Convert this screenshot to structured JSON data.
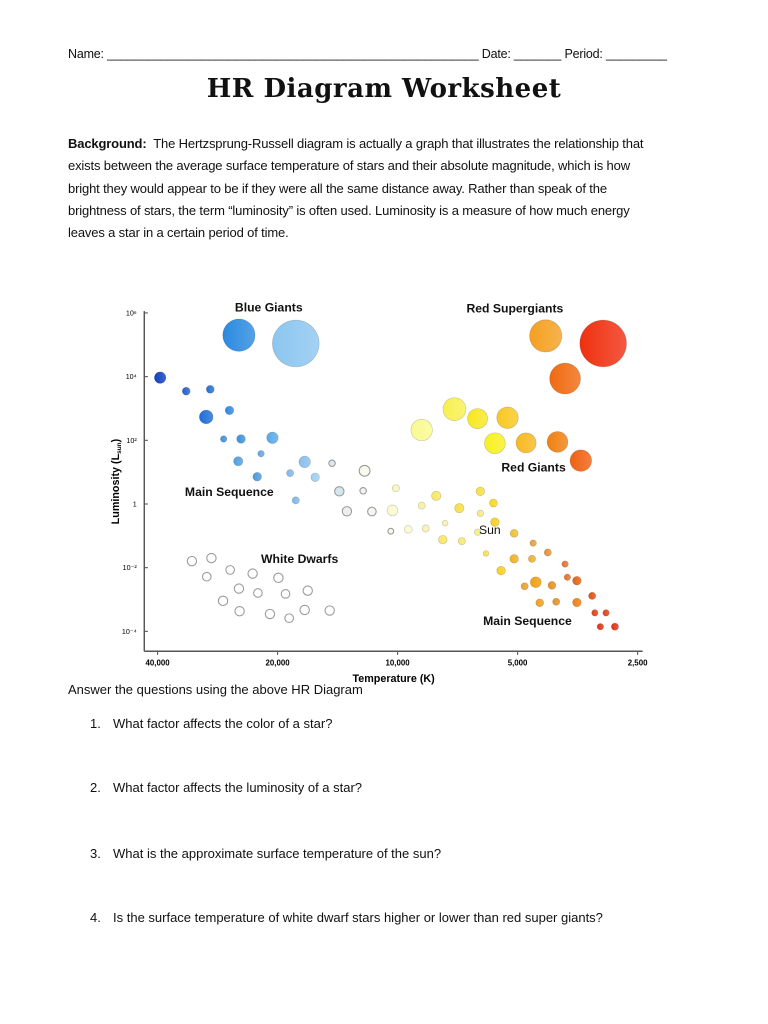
{
  "header": {
    "name_label": "Name:",
    "name_blank": "_______________________________________________________",
    "date_label": "Date:",
    "date_blank": "_______",
    "period_label": "Period:",
    "period_blank": "_________"
  },
  "title": "HR Diagram Worksheet",
  "background": {
    "label": "Background:",
    "lines": [
      "The Hertzsprung-Russell diagram is actually a graph that illustrates the relationship that",
      "exists between the average surface temperature of stars and their absolute magnitude, which is how",
      "bright they would appear to be if they were all the same distance away.  Rather than speak of the",
      "brightness of stars, the term “luminosity” is often used. Luminosity is a measure of how much energy",
      "leaves a star in a certain period of time."
    ]
  },
  "chart_data": {
    "type": "scatter",
    "xlabel": "Temperature (K)",
    "ylabel": "Luminosity (L",
    "ylabel_sub": "sun",
    "ylabel_close": ")",
    "x_scale": "log, reversed",
    "y_scale": "log",
    "xlim": [
      40000,
      2500
    ],
    "ylim": [
      0.0001,
      1000000
    ],
    "x_ticks": [
      "40,000",
      "20,000",
      "10,000",
      "5,000",
      "2,500"
    ],
    "x_tick_values": [
      40000,
      20000,
      10000,
      5000,
      2500
    ],
    "y_ticks": [
      "10⁶",
      "10⁴",
      "10²",
      "1",
      "10⁻²",
      "10⁻⁴"
    ],
    "y_tick_values": [
      1000000,
      10000,
      100,
      1,
      0.01,
      0.0001
    ],
    "grid": false,
    "annotations": {
      "blue_giants": "Blue Giants",
      "red_supergiants": "Red Supergiants",
      "red_giants": "Red Giants",
      "main_sequence_upper": "Main Sequence",
      "sun": "Sun",
      "white_dwarfs": "White Dwarfs",
      "main_sequence_lower": "Main Sequence"
    },
    "point_fields": [
      "temperature_K",
      "luminosity_Lsun",
      "relative_size",
      "color"
    ],
    "groups": [
      {
        "group": "blue-giants",
        "outline": false,
        "points": [
          [
            25000,
            200000.0,
            4.5,
            "#2a8ae0"
          ],
          [
            18000,
            110000.0,
            6.5,
            "#8cc6f0"
          ]
        ]
      },
      {
        "group": "red-supergiants",
        "outline": false,
        "points": [
          [
            4250,
            190000.0,
            4.5,
            "#f5a020"
          ],
          [
            3050,
            110000.0,
            6.5,
            "#f03010"
          ],
          [
            3800,
            8700.0,
            4.3,
            "#f06a10"
          ]
        ]
      },
      {
        "group": "red-giants",
        "outline": false,
        "points": [
          [
            8700,
            210,
            3.0,
            "#fafa90"
          ],
          [
            7200,
            950,
            3.2,
            "#f8f050"
          ],
          [
            6300,
            480,
            2.8,
            "#f8e820"
          ],
          [
            5300,
            510,
            3.0,
            "#f8c820"
          ],
          [
            5700,
            81,
            2.9,
            "#f8f020"
          ],
          [
            4760,
            83,
            2.8,
            "#f8b820"
          ],
          [
            3970,
            89,
            2.9,
            "#f08010"
          ],
          [
            3470,
            23,
            3.0,
            "#f06010"
          ]
        ]
      },
      {
        "group": "main-sequence",
        "outline": false,
        "points": [
          [
            39400,
            9300.0,
            1.6,
            "#1040c0"
          ],
          [
            33900,
            3500.0,
            1.1,
            "#2060d0"
          ],
          [
            29500,
            4000.0,
            1.1,
            "#2070d8"
          ],
          [
            30200,
            540,
            1.9,
            "#1e6ed8"
          ],
          [
            26400,
            870,
            1.2,
            "#3088e0"
          ],
          [
            27300,
            110,
            0.9,
            "#3a90e0"
          ],
          [
            24700,
            110,
            1.2,
            "#3a90e0"
          ],
          [
            20600,
            120,
            1.6,
            "#5aa8e8"
          ],
          [
            22000,
            38,
            0.9,
            "#60a8e8"
          ],
          [
            25100,
            22,
            1.3,
            "#50a0e0"
          ],
          [
            22500,
            7.2,
            1.2,
            "#4a9ae0"
          ],
          [
            17100,
            21,
            1.6,
            "#88c0ec"
          ],
          [
            18600,
            9.3,
            1.0,
            "#80b8e8"
          ],
          [
            16100,
            6.9,
            1.2,
            "#a0cef0"
          ],
          [
            18000,
            1.3,
            1.0,
            "#80b8e8"
          ],
          [
            10300,
            0.63,
            1.5,
            "#fafad0"
          ],
          [
            10100,
            3.1,
            1.0,
            "#f8f4c0"
          ],
          [
            9400,
            0.16,
            1.1,
            "#fafad0"
          ],
          [
            8500,
            0.17,
            1.0,
            "#f8f0b0"
          ],
          [
            8700,
            0.89,
            1.0,
            "#f8f0a0"
          ],
          [
            8000,
            1.8,
            1.3,
            "#f8e860"
          ],
          [
            7600,
            0.25,
            0.8,
            "#f8f0b0"
          ],
          [
            7000,
            0.74,
            1.3,
            "#f8e040"
          ],
          [
            7700,
            0.076,
            1.2,
            "#f8e860"
          ],
          [
            6900,
            0.068,
            1.0,
            "#f8e870"
          ],
          [
            6200,
            2.5,
            1.2,
            "#f8e040"
          ],
          [
            6200,
            0.51,
            0.9,
            "#f8e880"
          ],
          [
            5750,
            1.07,
            1.1,
            "#f8d820"
          ],
          [
            5700,
            0.27,
            1.2,
            "#f8d020"
          ],
          [
            6300,
            0.13,
            0.9,
            "#f8f080"
          ],
          [
            5100,
            0.12,
            1.1,
            "#f0c030"
          ],
          [
            6000,
            0.028,
            0.8,
            "#f8e050"
          ],
          [
            5500,
            0.0081,
            1.2,
            "#f8d020"
          ],
          [
            5100,
            0.019,
            1.2,
            "#f0b020"
          ],
          [
            4600,
            0.019,
            1.0,
            "#f0b030"
          ],
          [
            4570,
            0.059,
            0.9,
            "#e8a040"
          ],
          [
            4200,
            0.03,
            1.0,
            "#e89030"
          ],
          [
            4800,
            0.0026,
            1.0,
            "#e8a030"
          ],
          [
            4500,
            0.0035,
            1.5,
            "#f0a010"
          ],
          [
            4100,
            0.0028,
            1.1,
            "#e89020"
          ],
          [
            4400,
            0.00079,
            1.1,
            "#f0a020"
          ],
          [
            4000,
            0.00085,
            1.0,
            "#e89020"
          ],
          [
            3800,
            0.013,
            0.9,
            "#e87030"
          ],
          [
            3750,
            0.005,
            0.9,
            "#e87020"
          ],
          [
            3550,
            0.0039,
            1.2,
            "#e86010"
          ],
          [
            3550,
            0.00081,
            1.2,
            "#f08010"
          ],
          [
            3250,
            0.0013,
            1.0,
            "#e05010"
          ],
          [
            3200,
            0.00038,
            0.9,
            "#e04010"
          ],
          [
            3000,
            0.00038,
            0.9,
            "#e04010"
          ],
          [
            3100,
            0.00014,
            0.9,
            "#e03010"
          ],
          [
            2850,
            0.00014,
            1.0,
            "#e03010"
          ]
        ]
      },
      {
        "group": "main-sequence-pale",
        "outline": true,
        "points": [
          [
            14600,
            19,
            0.9,
            "#dfe8ec"
          ],
          [
            14000,
            2.5,
            1.3,
            "#d6e6ee"
          ],
          [
            12100,
            11,
            1.5,
            "#fafaec"
          ],
          [
            12200,
            2.6,
            0.9,
            "#f2f2f2"
          ],
          [
            13400,
            0.59,
            1.3,
            "#eeeeee"
          ],
          [
            11600,
            0.58,
            1.2,
            "#f4f4f0"
          ],
          [
            10400,
            0.14,
            0.8,
            "#f8f8e6"
          ]
        ]
      },
      {
        "group": "white-dwarfs",
        "outline": true,
        "points": [
          [
            32800,
            0.016,
            1.3,
            "#ffffff"
          ],
          [
            29300,
            0.02,
            1.3,
            "#ffffff"
          ],
          [
            26300,
            0.0085,
            1.2,
            "#ffffff"
          ],
          [
            23100,
            0.0065,
            1.3,
            "#ffffff"
          ],
          [
            19900,
            0.0048,
            1.3,
            "#ffffff"
          ],
          [
            30100,
            0.0052,
            1.2,
            "#ffffff"
          ],
          [
            25000,
            0.0022,
            1.3,
            "#ffffff"
          ],
          [
            22400,
            0.0016,
            1.2,
            "#ffffff"
          ],
          [
            19100,
            0.0015,
            1.2,
            "#ffffff"
          ],
          [
            16800,
            0.0019,
            1.3,
            "#ffffff"
          ],
          [
            27400,
            0.00091,
            1.3,
            "#ffffff"
          ],
          [
            24900,
            0.00043,
            1.3,
            "#ffffff"
          ],
          [
            20900,
            0.00035,
            1.3,
            "#ffffff"
          ],
          [
            18700,
            0.00026,
            1.2,
            "#ffffff"
          ],
          [
            17100,
            0.00047,
            1.3,
            "#ffffff"
          ],
          [
            14800,
            0.00045,
            1.3,
            "#ffffff"
          ]
        ]
      }
    ]
  },
  "questions": {
    "intro": "Answer the questions using the above HR Diagram",
    "items": [
      {
        "num": "1.",
        "text": "What factor affects the color of a star?"
      },
      {
        "num": "2.",
        "text": "What factor affects the luminosity of a star?"
      },
      {
        "num": "3.",
        "text": "What is the approximate surface temperature of the sun?"
      },
      {
        "num": "4.",
        "text": "Is the surface temperature of white dwarf stars higher or lower than red super giants?"
      }
    ]
  }
}
